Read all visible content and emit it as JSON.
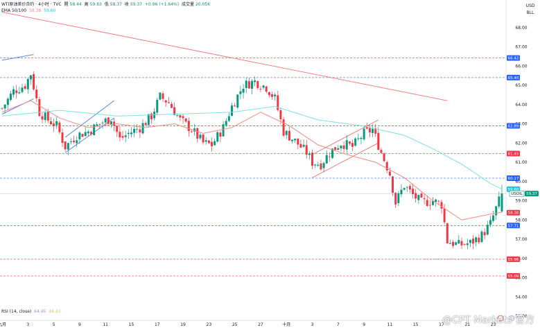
{
  "header": {
    "symbol": "WTI原油差价合约 · 4小时 · TVC",
    "open_label": "開",
    "open": "58.44",
    "high_label": "高",
    "high": "59.83",
    "low_label": "低",
    "low": "58.37",
    "close_label": "收",
    "close": "59.37",
    "change": "+0.96 (+1.64%)",
    "volume_label": "成交量",
    "volume": "20.05K",
    "ema_label": "EMA 50/100",
    "ema50": "58.38",
    "ema100": "59.60",
    "rsi_label": "RSI (14, close)",
    "rsi1": "64.45",
    "rsi2": "48.43"
  },
  "axis": {
    "currency": "USD",
    "unit": "BLL"
  },
  "watermark": "@CPT Markets 官方",
  "colors": {
    "up": "#089981",
    "down": "#f23645",
    "ema50": "#f28b82",
    "ema100": "#80deea",
    "trendline": "#f08080",
    "channel_blue": "#5b8def",
    "level_blue": "#2962ff",
    "level_red": "#f23645"
  },
  "chart_data": {
    "type": "candlestick",
    "ylim": [
      53.0,
      69.0
    ],
    "y_ticks": [
      "68.00",
      "67.00",
      "66.00",
      "65.00",
      "64.00",
      "63.00",
      "62.00",
      "61.00",
      "60.00",
      "59.00",
      "58.00",
      "57.00",
      "56.00",
      "55.00",
      "54.00",
      "53.00"
    ],
    "x_ticks": [
      {
        "label": "九月",
        "i": 0
      },
      {
        "label": "3",
        "i": 9
      },
      {
        "label": "5",
        "i": 18
      },
      {
        "label": "9",
        "i": 27
      },
      {
        "label": "11",
        "i": 36
      },
      {
        "label": "15",
        "i": 45
      },
      {
        "label": "17",
        "i": 54
      },
      {
        "label": "19",
        "i": 63
      },
      {
        "label": "23",
        "i": 72
      },
      {
        "label": "25",
        "i": 81
      },
      {
        "label": "27",
        "i": 90
      },
      {
        "label": "十月",
        "i": 99
      },
      {
        "label": "3",
        "i": 108
      },
      {
        "label": "7",
        "i": 117
      },
      {
        "label": "9",
        "i": 126
      },
      {
        "label": "11",
        "i": 135
      },
      {
        "label": "15",
        "i": 144
      },
      {
        "label": "17",
        "i": 153
      },
      {
        "label": "21",
        "i": 162
      },
      {
        "label": "23",
        "i": 171
      }
    ],
    "levels": [
      {
        "value": "66.42",
        "color": "blue",
        "style": "dashed"
      },
      {
        "value": "65.40",
        "color": "blue",
        "style": "dashed"
      },
      {
        "value": "62.89",
        "color": "blue",
        "style": "dashed"
      },
      {
        "value": "61.45",
        "color": "red",
        "style": "dashed"
      },
      {
        "value": "60.17",
        "color": "blue",
        "style": "dashed"
      },
      {
        "value": "59.60",
        "color": "cyan",
        "style": "solid"
      },
      {
        "value": "59.37",
        "color": "teal",
        "style": "solid",
        "tag": "USOIL"
      },
      {
        "value": "58.38",
        "color": "red",
        "style": "none"
      },
      {
        "value": "57.71",
        "color": "blue",
        "style": "dashed"
      },
      {
        "value": "55.96",
        "color": "red",
        "style": "dashed"
      },
      {
        "value": "55.09",
        "color": "red",
        "style": "dashed"
      }
    ],
    "trendlines": [
      {
        "color": "red",
        "from": [
          0,
          68.8
        ],
        "to": [
          155,
          64.2
        ]
      },
      {
        "color": "blue",
        "from": [
          0,
          66.3
        ],
        "to": [
          11,
          66.6
        ]
      },
      {
        "color": "blue",
        "from": [
          0,
          63.5
        ],
        "to": [
          11,
          64.3
        ]
      },
      {
        "color": "blue",
        "from": [
          22,
          61.5
        ],
        "to": [
          39,
          63.3
        ]
      },
      {
        "color": "blue",
        "from": [
          22,
          62.3
        ],
        "to": [
          39,
          64.2
        ]
      },
      {
        "color": "red",
        "from": [
          108,
          60.2
        ],
        "to": [
          131,
          62.0
        ]
      },
      {
        "color": "red",
        "from": [
          108,
          61.4
        ],
        "to": [
          131,
          63.2
        ]
      }
    ],
    "ema50": [
      [
        0,
        63.6
      ],
      [
        10,
        64.2
      ],
      [
        20,
        63.3
      ],
      [
        30,
        62.8
      ],
      [
        40,
        63.0
      ],
      [
        50,
        62.8
      ],
      [
        60,
        63.0
      ],
      [
        70,
        62.5
      ],
      [
        80,
        62.8
      ],
      [
        90,
        63.6
      ],
      [
        100,
        62.9
      ],
      [
        110,
        61.9
      ],
      [
        120,
        61.4
      ],
      [
        130,
        61.0
      ],
      [
        140,
        60.2
      ],
      [
        150,
        59.0
      ],
      [
        160,
        58.0
      ],
      [
        170,
        58.3
      ],
      [
        174,
        58.4
      ]
    ],
    "ema100": [
      [
        0,
        63.4
      ],
      [
        20,
        63.7
      ],
      [
        40,
        63.4
      ],
      [
        60,
        63.5
      ],
      [
        80,
        63.6
      ],
      [
        95,
        63.9
      ],
      [
        110,
        63.2
      ],
      [
        125,
        62.9
      ],
      [
        140,
        62.4
      ],
      [
        150,
        61.7
      ],
      [
        160,
        60.9
      ],
      [
        170,
        59.9
      ],
      [
        174,
        59.6
      ]
    ],
    "close_path": [
      [
        0,
        63.8
      ],
      [
        4,
        64.7
      ],
      [
        8,
        65.0
      ],
      [
        10,
        65.6
      ],
      [
        13,
        63.6
      ],
      [
        16,
        63.2
      ],
      [
        19,
        62.9
      ],
      [
        22,
        61.8
      ],
      [
        26,
        62.4
      ],
      [
        30,
        62.6
      ],
      [
        34,
        63.0
      ],
      [
        38,
        63.3
      ],
      [
        41,
        62.2
      ],
      [
        44,
        62.5
      ],
      [
        48,
        62.8
      ],
      [
        52,
        63.4
      ],
      [
        55,
        64.4
      ],
      [
        58,
        64.1
      ],
      [
        62,
        63.2
      ],
      [
        66,
        62.7
      ],
      [
        70,
        62.0
      ],
      [
        73,
        61.9
      ],
      [
        77,
        62.8
      ],
      [
        80,
        63.9
      ],
      [
        84,
        65.0
      ],
      [
        88,
        65.2
      ],
      [
        92,
        64.9
      ],
      [
        95,
        64.3
      ],
      [
        98,
        62.6
      ],
      [
        102,
        62.1
      ],
      [
        106,
        61.5
      ],
      [
        108,
        61.0
      ],
      [
        111,
        60.9
      ],
      [
        114,
        61.5
      ],
      [
        118,
        62.0
      ],
      [
        122,
        61.8
      ],
      [
        126,
        62.5
      ],
      [
        129,
        62.7
      ],
      [
        132,
        61.5
      ],
      [
        135,
        60.4
      ],
      [
        137,
        58.9
      ],
      [
        140,
        59.8
      ],
      [
        143,
        59.3
      ],
      [
        146,
        58.9
      ],
      [
        150,
        59.0
      ],
      [
        153,
        58.8
      ],
      [
        155,
        56.9
      ],
      [
        159,
        56.7
      ],
      [
        163,
        56.8
      ],
      [
        167,
        57.2
      ],
      [
        170,
        57.8
      ],
      [
        172,
        58.6
      ],
      [
        174,
        59.37
      ]
    ]
  }
}
